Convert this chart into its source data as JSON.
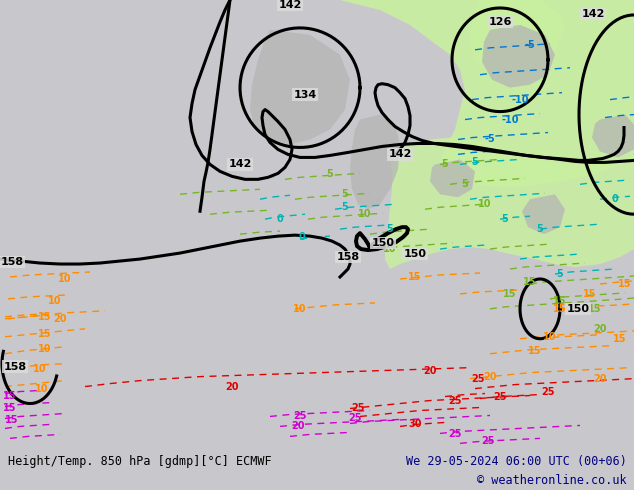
{
  "title_left": "Height/Temp. 850 hPa [gdmp][°C] ECMWF",
  "title_right": "We 29-05-2024 06:00 UTC (00+06)",
  "copyright": "© weatheronline.co.uk",
  "fig_width": 6.34,
  "fig_height": 4.9,
  "dpi": 100,
  "map_bg": "#dcdcdc",
  "green_fill": "#c8f0a0",
  "gray_fill": "#b4b4b4",
  "bottom_bar_color": "#c8c8cc",
  "font_size_bottom": 8.5,
  "contour_color": "#000000",
  "orange_color": "#ff8c00",
  "cyan_color": "#00b4b4",
  "green_color": "#78b428",
  "red_color": "#e00000",
  "magenta_color": "#d000d0",
  "blue_color": "#0078d0",
  "lw_main": 2.2,
  "lw_temp": 1.0
}
